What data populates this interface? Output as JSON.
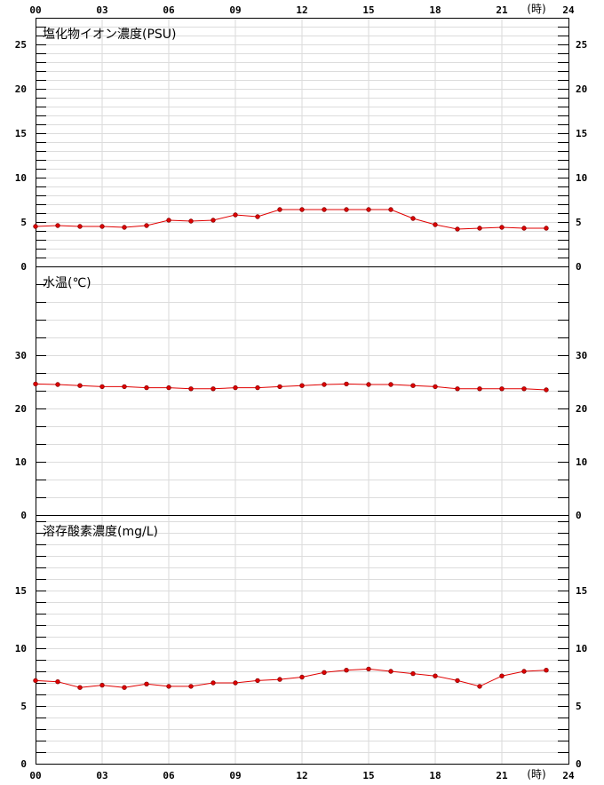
{
  "chart_data": [
    {
      "type": "line",
      "title": "塩化物イオン濃度(PSU)",
      "x_unit": "(時)",
      "x_tick_labels": [
        "00",
        "03",
        "06",
        "09",
        "12",
        "15",
        "18",
        "21",
        "24"
      ],
      "x": [
        0,
        1,
        2,
        3,
        4,
        5,
        6,
        7,
        8,
        9,
        10,
        11,
        12,
        13,
        14,
        15,
        16,
        17,
        18,
        19,
        20,
        21,
        22,
        23
      ],
      "y_ticks": [
        0,
        5,
        10,
        15,
        20,
        25
      ],
      "ylim": [
        0,
        28
      ],
      "minor_step": 1,
      "grid": true,
      "series": [
        {
          "color": "#e00000",
          "values": [
            4.5,
            4.6,
            4.5,
            4.5,
            4.4,
            4.6,
            5.2,
            5.1,
            5.2,
            5.8,
            5.6,
            6.4,
            6.4,
            6.4,
            6.4,
            6.4,
            6.4,
            5.4,
            4.7,
            4.2,
            4.3,
            4.4,
            4.3,
            4.3
          ]
        }
      ]
    },
    {
      "type": "line",
      "title": "水温(℃)",
      "x_unit": "(時)",
      "x_tick_labels": [
        "00",
        "03",
        "06",
        "09",
        "12",
        "15",
        "18",
        "21",
        "24"
      ],
      "x": [
        0,
        1,
        2,
        3,
        4,
        5,
        6,
        7,
        8,
        9,
        10,
        11,
        12,
        13,
        14,
        15,
        16,
        17,
        18,
        19,
        20,
        21,
        22,
        23
      ],
      "y_ticks": [
        0,
        10,
        20,
        30
      ],
      "ylim": [
        0,
        46.67
      ],
      "minor_step": 3.333,
      "grid": true,
      "series": [
        {
          "color": "#e00000",
          "values": [
            24.6,
            24.5,
            24.3,
            24.1,
            24.1,
            23.9,
            23.9,
            23.7,
            23.7,
            23.9,
            23.9,
            24.1,
            24.3,
            24.5,
            24.6,
            24.5,
            24.5,
            24.3,
            24.1,
            23.7,
            23.7,
            23.7,
            23.7,
            23.5
          ]
        }
      ]
    },
    {
      "type": "line",
      "title": "溶存酸素濃度(mg/L)",
      "x_unit": "(時)",
      "x_tick_labels": [
        "00",
        "03",
        "06",
        "09",
        "12",
        "15",
        "18",
        "21",
        "24"
      ],
      "x": [
        0,
        1,
        2,
        3,
        4,
        5,
        6,
        7,
        8,
        9,
        10,
        11,
        12,
        13,
        14,
        15,
        16,
        17,
        18,
        19,
        20,
        21,
        22,
        23
      ],
      "y_ticks": [
        0,
        5,
        10,
        15
      ],
      "ylim": [
        0,
        21.54
      ],
      "minor_step": 1,
      "grid": true,
      "series": [
        {
          "color": "#e00000",
          "values": [
            7.2,
            7.1,
            6.6,
            6.8,
            6.6,
            6.9,
            6.7,
            6.7,
            7.0,
            7.0,
            7.2,
            7.3,
            7.5,
            7.9,
            8.1,
            8.2,
            8.0,
            7.8,
            7.6,
            7.2,
            6.7,
            7.6,
            8.0,
            8.1
          ]
        }
      ]
    }
  ]
}
